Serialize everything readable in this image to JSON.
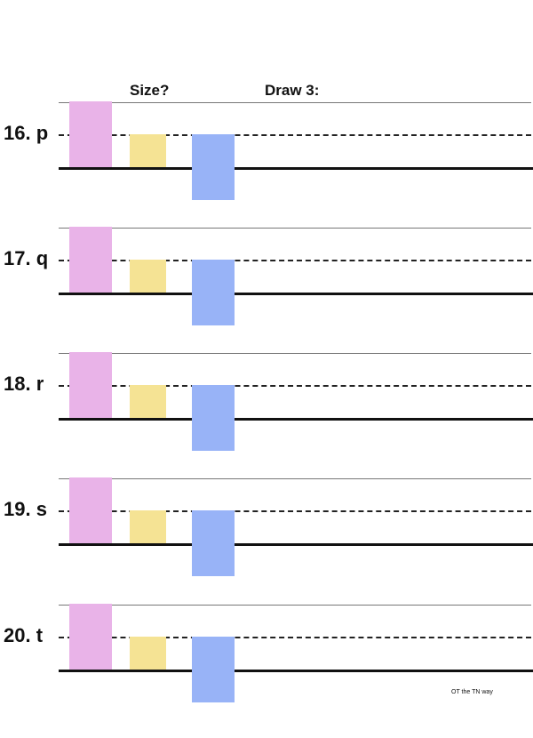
{
  "headers": {
    "size": "Size?",
    "draw": "Draw 3:"
  },
  "colors": {
    "tall_box": "#e9b3e8",
    "small_box": "#f5e394",
    "descender_box": "#98b3f7"
  },
  "rows": [
    {
      "label": "16. p"
    },
    {
      "label": "17. q"
    },
    {
      "label": "18. r"
    },
    {
      "label": "19. s"
    },
    {
      "label": "20. t"
    }
  ],
  "footer": "OT the TN way"
}
